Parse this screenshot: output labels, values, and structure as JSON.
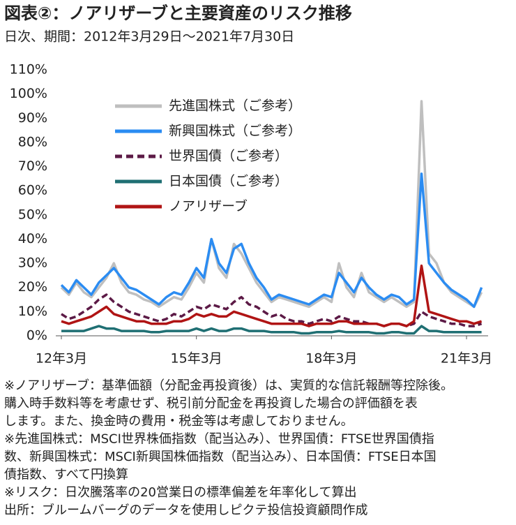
{
  "chart_data": {
    "type": "line",
    "title": "図表②：ノアリザーブと主要資産のリスク推移",
    "subtitle": "日次、期間：2012年3月29日～2021年7月30日",
    "categories": [
      "12年3月",
      null,
      null,
      null,
      null,
      null,
      null,
      null,
      null,
      null,
      null,
      null,
      null,
      null,
      null,
      null,
      null,
      null,
      "15年3月",
      null,
      null,
      null,
      null,
      null,
      null,
      null,
      null,
      null,
      null,
      null,
      null,
      null,
      null,
      null,
      null,
      null,
      "18年3月",
      null,
      null,
      null,
      null,
      null,
      null,
      null,
      null,
      null,
      null,
      null,
      null,
      null,
      null,
      null,
      null,
      null,
      "21年3月",
      null,
      null
    ],
    "series": [
      {
        "name": "先進国株式（ご参考）",
        "color": "#bfbfbf",
        "style": "solid",
        "values": [
          20,
          17,
          22,
          18,
          16,
          20,
          24,
          30,
          22,
          18,
          17,
          15,
          14,
          12,
          14,
          16,
          15,
          20,
          26,
          22,
          40,
          28,
          24,
          38,
          34,
          28,
          22,
          18,
          14,
          16,
          15,
          14,
          13,
          12,
          14,
          16,
          14,
          30,
          20,
          16,
          26,
          18,
          16,
          14,
          16,
          14,
          12,
          14,
          97,
          34,
          30,
          22,
          18,
          16,
          14,
          12,
          18
        ]
      },
      {
        "name": "新興国株式（ご参考）",
        "color": "#2b8cf2",
        "style": "solid",
        "values": [
          21,
          18,
          23,
          20,
          17,
          22,
          25,
          28,
          24,
          20,
          19,
          17,
          15,
          13,
          16,
          18,
          17,
          22,
          28,
          24,
          40,
          30,
          26,
          36,
          38,
          30,
          24,
          20,
          15,
          17,
          16,
          15,
          14,
          13,
          15,
          17,
          16,
          26,
          22,
          18,
          24,
          20,
          17,
          15,
          17,
          16,
          13,
          15,
          67,
          30,
          26,
          22,
          19,
          17,
          15,
          12,
          20
        ]
      },
      {
        "name": "世界国債（ご参考）",
        "color": "#5c1a46",
        "style": "dashed",
        "values": [
          9,
          7,
          8,
          10,
          12,
          15,
          17,
          14,
          12,
          10,
          9,
          8,
          7,
          6,
          7,
          9,
          8,
          10,
          12,
          11,
          13,
          12,
          11,
          14,
          16,
          13,
          12,
          10,
          8,
          9,
          7,
          6,
          6,
          5,
          6,
          7,
          6,
          8,
          7,
          6,
          6,
          5,
          5,
          4,
          5,
          5,
          4,
          5,
          10,
          8,
          7,
          6,
          5,
          5,
          4,
          4,
          5
        ]
      },
      {
        "name": "日本国債（ご参考）",
        "color": "#1f6f73",
        "style": "solid",
        "values": [
          2,
          2,
          2,
          2,
          3,
          4,
          3,
          3,
          2,
          2,
          2,
          2,
          1.5,
          1.5,
          2,
          2,
          2,
          2,
          3,
          2,
          3,
          2,
          2,
          3,
          3,
          2,
          2,
          2,
          1.5,
          1.5,
          1.5,
          1.5,
          1,
          1,
          1.5,
          1.5,
          1.5,
          2,
          1.5,
          1.5,
          1.5,
          1.5,
          1,
          1,
          1.5,
          1.5,
          1,
          1,
          4,
          2,
          2,
          1.5,
          1.5,
          1.5,
          1.5,
          1.5,
          1.5
        ]
      },
      {
        "name": "ノアリザーブ",
        "color": "#b01414",
        "style": "solid",
        "values": [
          6,
          5,
          6,
          7,
          8,
          10,
          12,
          9,
          8,
          7,
          6,
          6,
          5,
          5,
          5,
          6,
          6,
          7,
          9,
          8,
          9,
          8,
          8,
          10,
          9,
          8,
          7,
          6,
          5,
          5,
          5,
          5,
          5,
          4,
          5,
          5,
          5,
          6,
          6,
          5,
          5,
          5,
          5,
          4,
          5,
          5,
          4,
          6,
          29,
          10,
          9,
          8,
          7,
          6,
          6,
          5,
          6
        ]
      }
    ],
    "ylim": [
      0,
      110
    ],
    "yticks": [
      {
        "value": 0,
        "label": "0%"
      },
      {
        "value": 10,
        "label": "10%"
      },
      {
        "value": 20,
        "label": "20%"
      },
      {
        "value": 30,
        "label": "30%"
      },
      {
        "value": 40,
        "label": "40%"
      },
      {
        "value": 50,
        "label": "50%"
      },
      {
        "value": 60,
        "label": "60%"
      },
      {
        "value": 70,
        "label": "70%"
      },
      {
        "value": 80,
        "label": "80%"
      },
      {
        "value": 90,
        "label": "90%"
      },
      {
        "value": 100,
        "label": "100%"
      },
      {
        "value": 110,
        "label": "110%"
      }
    ],
    "grid": false,
    "notes": [
      "※ノアリザーブ：基準価額（分配金再投資後）は、実質的な信託報酬等控除後。",
      "購入時手数料等を考慮せず、税引前分配金を再投資した場合の評価額を表",
      "します。また、換金時の費用・税金等は考慮しておりません。",
      "※先進国株式：MSCI世界株価指数（配当込み）、世界国債：FTSE世界国債指",
      "数、新興国株式：MSCI新興国株価指数（配当込み）、日本国債：FTSE日本国",
      "債指数、すべて円換算",
      "※リスク：日次騰落率の20営業日の標準偏差を年率化して算出",
      "出所：ブルームバーグのデータを使用しピクテ投信投資顧問作成"
    ]
  }
}
